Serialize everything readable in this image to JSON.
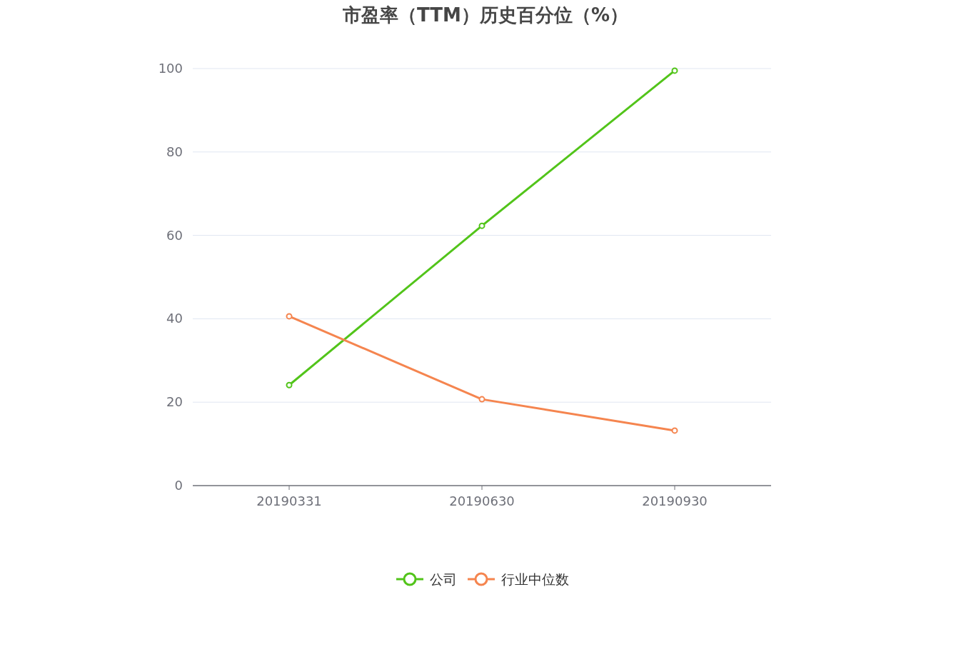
{
  "chart_data": {
    "type": "line",
    "title": "市盈率（TTM）历史百分位（%）",
    "categories": [
      "20190331",
      "20190630",
      "20190930"
    ],
    "series": [
      {
        "name": "公司",
        "color": "#52c41a",
        "values": [
          24.1,
          62.3,
          99.5
        ]
      },
      {
        "name": "行业中位数",
        "color": "#f5854f",
        "values": [
          40.6,
          20.7,
          13.2
        ]
      }
    ],
    "ylim": [
      0,
      100
    ],
    "yticks": [
      0,
      20,
      40,
      60,
      80,
      100
    ],
    "grid": "y",
    "legend": "bottom",
    "marker": "circle",
    "line_style": "solid"
  }
}
